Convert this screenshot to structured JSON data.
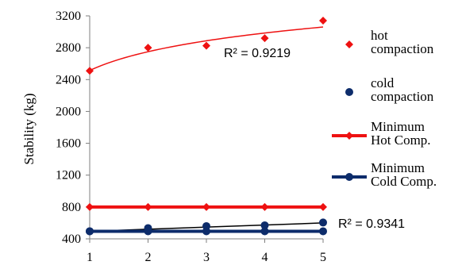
{
  "chart_data": {
    "type": "scatter",
    "ylabel": "Stability (kg)",
    "xlabel": "",
    "xlim": [
      1,
      5
    ],
    "ylim": [
      400,
      3200
    ],
    "x_ticks": [
      "1",
      "2",
      "3",
      "4",
      "5"
    ],
    "y_ticks": [
      "400",
      "800",
      "1200",
      "1600",
      "2000",
      "2400",
      "2800",
      "3200"
    ],
    "series": [
      {
        "name_lines": [
          "hot",
          "compaction"
        ],
        "kind": "markers",
        "marker": "diamond",
        "color": "#ee1111",
        "x": [
          1,
          2,
          3,
          4,
          5
        ],
        "y": [
          2510,
          2800,
          2825,
          2920,
          3140
        ]
      },
      {
        "name_lines": [
          "cold",
          "compaction"
        ],
        "kind": "markers",
        "marker": "circle",
        "color": "#0d2c6b",
        "x": [
          1,
          2,
          3,
          4,
          5
        ],
        "y": [
          495,
          535,
          560,
          570,
          605
        ]
      },
      {
        "name_lines": [
          "Minimum",
          "Hot Comp."
        ],
        "kind": "line-markers",
        "marker": "diamond",
        "color": "#ee1111",
        "x": [
          1,
          2,
          3,
          4,
          5
        ],
        "y": [
          800,
          800,
          800,
          800,
          800
        ]
      },
      {
        "name_lines": [
          "Minimum",
          "Cold Comp."
        ],
        "kind": "line-markers",
        "marker": "circle",
        "color": "#0d2c6b",
        "x": [
          1,
          2,
          3,
          4,
          5
        ],
        "y": [
          495,
          495,
          495,
          495,
          495
        ]
      }
    ],
    "trendlines": [
      {
        "type": "logarithmic",
        "color": "#ee1111",
        "y_at_1": 2515,
        "y_at_5": 3060,
        "r2_label": "R² = 0.9219"
      },
      {
        "type": "linear",
        "color": "#000000",
        "y_at_1": 495,
        "y_at_5": 600,
        "r2_label": "R² = 0.9341"
      }
    ],
    "grid": false,
    "legend_position": "right"
  }
}
